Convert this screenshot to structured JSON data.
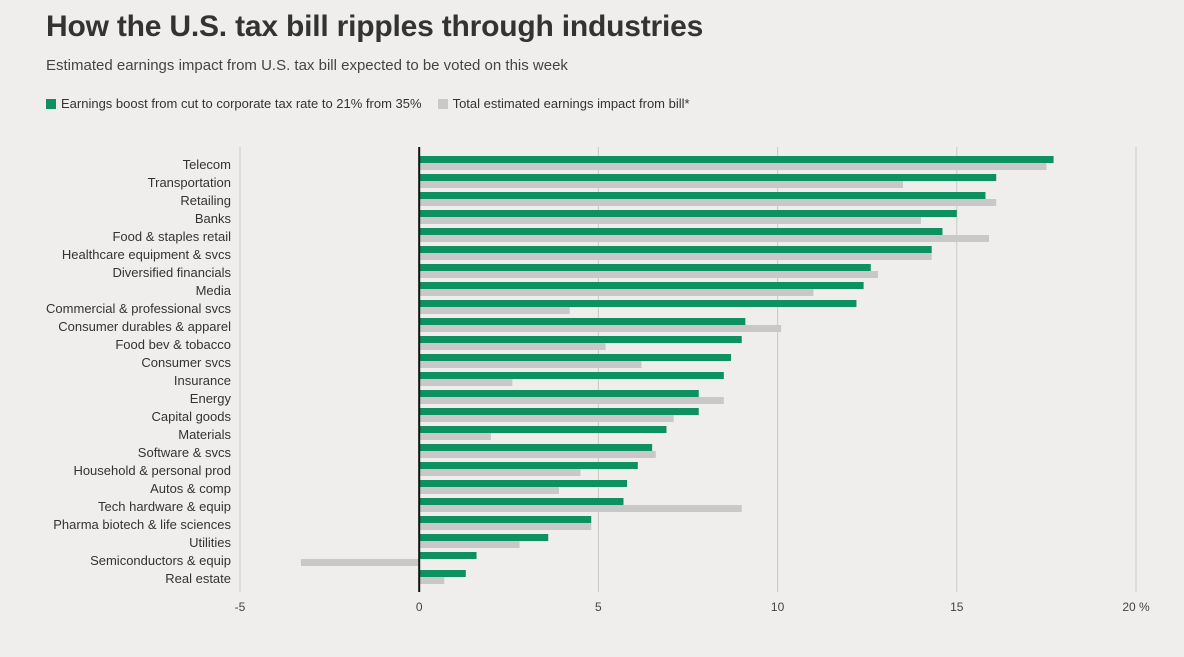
{
  "chart_data": {
    "type": "bar",
    "orientation": "horizontal",
    "title": "How the U.S. tax bill ripples through industries",
    "subtitle": "Estimated earnings impact from U.S. tax bill expected to be voted on this week",
    "xlim": [
      -5,
      20
    ],
    "xticks": [
      "-5",
      "0",
      "5",
      "10",
      "15",
      "20 %"
    ],
    "xtick_values": [
      -5,
      0,
      5,
      10,
      15,
      20
    ],
    "grid": true,
    "legend_position": "top-left",
    "colors": {
      "boost": "#0e9161",
      "total": "#c8c8c8",
      "grid": "#c9c9c9",
      "zero": "#111111"
    },
    "categories": [
      "Telecom",
      "Transportation",
      "Retailing",
      "Banks",
      "Food & staples retail",
      "Healthcare equipment & svcs",
      "Diversified financials",
      "Media",
      "Commercial & professional svcs",
      "Consumer durables & apparel",
      "Food bev & tobacco",
      "Consumer svcs",
      "Insurance",
      "Energy",
      "Capital goods",
      "Materials",
      "Software & svcs",
      "Household & personal prod",
      "Autos & comp",
      "Tech hardware & equip",
      "Pharma biotech & life sciences",
      "Utilities",
      "Semiconductors & equip",
      "Real estate"
    ],
    "series": [
      {
        "name": "Earnings boost from cut to corporate tax rate to 21% from 35%",
        "key": "boost",
        "values": [
          17.7,
          16.1,
          15.8,
          15.0,
          14.6,
          14.3,
          12.6,
          12.4,
          12.2,
          9.1,
          9.0,
          8.7,
          8.5,
          7.8,
          7.8,
          6.9,
          6.5,
          6.1,
          5.8,
          5.7,
          4.8,
          3.6,
          1.6,
          1.3
        ]
      },
      {
        "name": "Total estimated earnings impact from bill*",
        "key": "total",
        "values": [
          17.5,
          13.5,
          16.1,
          14.0,
          15.9,
          14.3,
          12.8,
          11.0,
          4.2,
          10.1,
          5.2,
          6.2,
          2.6,
          8.5,
          7.1,
          2.0,
          6.6,
          4.5,
          3.9,
          9.0,
          4.8,
          2.8,
          -3.3,
          0.7
        ]
      }
    ]
  }
}
